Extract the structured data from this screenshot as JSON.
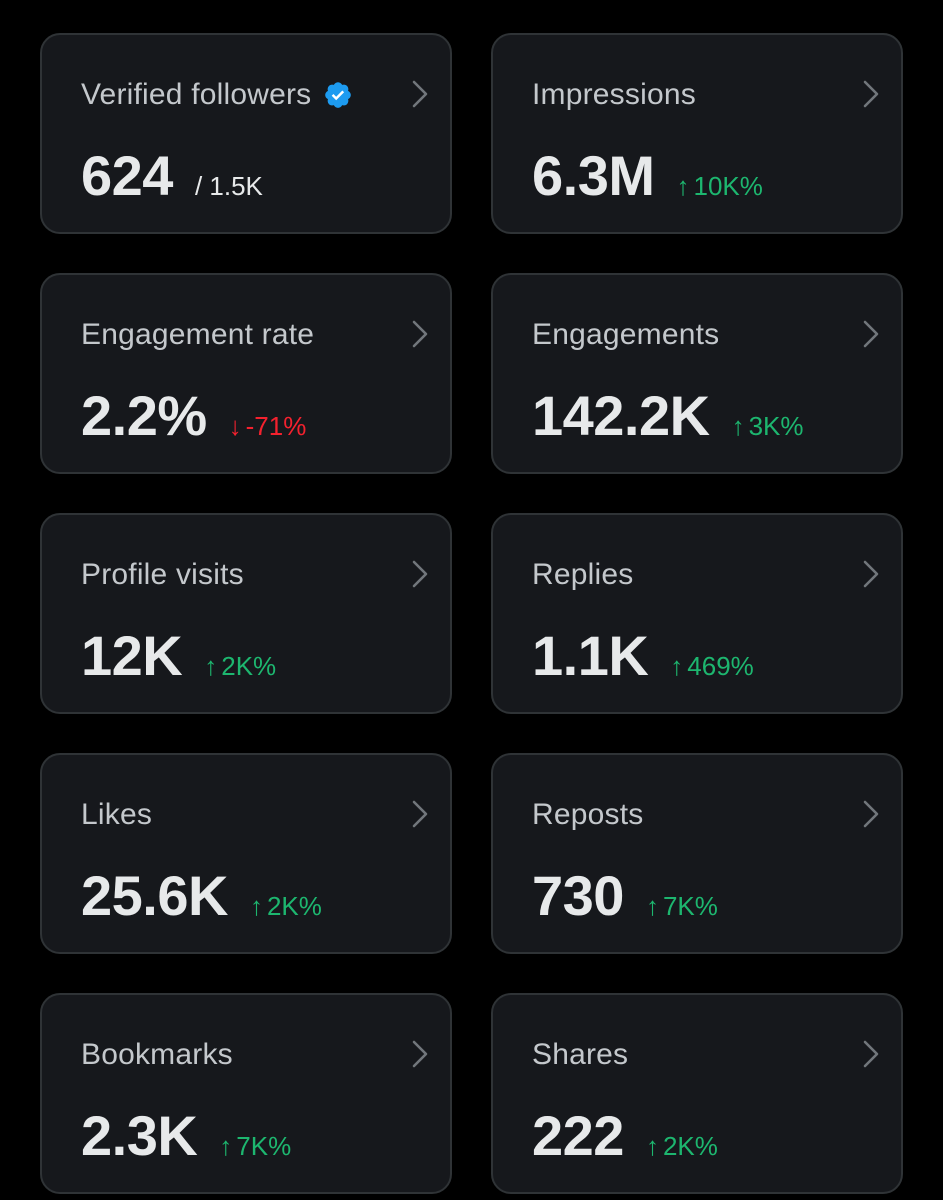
{
  "colors": {
    "background": "#000000",
    "card": "#16181c",
    "card_border": "#2f3336",
    "positive": "#1db66f",
    "negative": "#f4212e",
    "verified": "#1d9bf0"
  },
  "metrics": [
    {
      "label": "Verified followers",
      "value": "624",
      "sub": "/ 1.5K",
      "verified_badge": true,
      "icon": "chevron-right-icon"
    },
    {
      "label": "Impressions",
      "value": "6.3M",
      "delta": {
        "arrow": "↑",
        "text": "10K%",
        "direction": "up"
      },
      "icon": "chevron-right-icon"
    },
    {
      "label": "Engagement rate",
      "value": "2.2%",
      "delta": {
        "arrow": "↓",
        "text": "-71%",
        "direction": "down"
      },
      "icon": "chevron-right-icon"
    },
    {
      "label": "Engagements",
      "value": "142.2K",
      "delta": {
        "arrow": "↑",
        "text": "3K%",
        "direction": "up"
      },
      "icon": "chevron-right-icon"
    },
    {
      "label": "Profile visits",
      "value": "12K",
      "delta": {
        "arrow": "↑",
        "text": "2K%",
        "direction": "up"
      },
      "icon": "chevron-right-icon"
    },
    {
      "label": "Replies",
      "value": "1.1K",
      "delta": {
        "arrow": "↑",
        "text": "469%",
        "direction": "up"
      },
      "icon": "chevron-right-icon"
    },
    {
      "label": "Likes",
      "value": "25.6K",
      "delta": {
        "arrow": "↑",
        "text": "2K%",
        "direction": "up"
      },
      "icon": "chevron-right-icon"
    },
    {
      "label": "Reposts",
      "value": "730",
      "delta": {
        "arrow": "↑",
        "text": "7K%",
        "direction": "up"
      },
      "icon": "chevron-right-icon"
    },
    {
      "label": "Bookmarks",
      "value": "2.3K",
      "delta": {
        "arrow": "↑",
        "text": "7K%",
        "direction": "up"
      },
      "icon": "chevron-right-icon"
    },
    {
      "label": "Shares",
      "value": "222",
      "delta": {
        "arrow": "↑",
        "text": "2K%",
        "direction": "up"
      },
      "icon": "chevron-right-icon"
    }
  ]
}
